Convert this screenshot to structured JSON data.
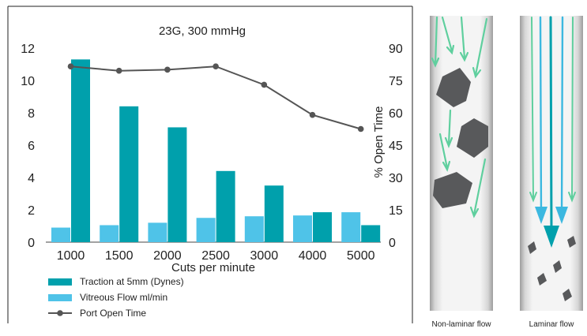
{
  "chart_data": {
    "type": "bar",
    "title": "23G, 300 mmHg",
    "xlabel": "Cuts per minute",
    "ylabel_right": "% Open Time",
    "categories": [
      "1000",
      "1500",
      "2000",
      "2500",
      "3000",
      "4000",
      "5000"
    ],
    "ylim_left": [
      0,
      12
    ],
    "yticks_left": [
      0,
      2,
      4,
      6,
      8,
      10,
      12
    ],
    "ylim_right": [
      0,
      90
    ],
    "yticks_right": [
      0,
      15,
      30,
      45,
      60,
      75,
      90
    ],
    "series": [
      {
        "name": "Vitreous Flow ml/min",
        "type": "bar",
        "axis": "left",
        "color": "#4fc3e8",
        "values": [
          0.9,
          1.05,
          1.2,
          1.5,
          1.6,
          1.65,
          1.85
        ]
      },
      {
        "name": "Traction at 5mm (Dynes)",
        "type": "bar",
        "axis": "left",
        "color": "#00a0ac",
        "values": [
          11.3,
          8.4,
          7.1,
          4.4,
          3.5,
          1.85,
          1.05
        ]
      },
      {
        "name": "Port Open Time",
        "type": "line",
        "axis": "right",
        "color": "#555555",
        "values": [
          81.5,
          79.5,
          80,
          81.5,
          73,
          59,
          52.5
        ]
      }
    ],
    "legend_position": "bottom-left",
    "grid": false
  },
  "illustrations": {
    "non_laminar_caption": "Non-laminar flow",
    "laminar_caption": "Laminar flow"
  }
}
